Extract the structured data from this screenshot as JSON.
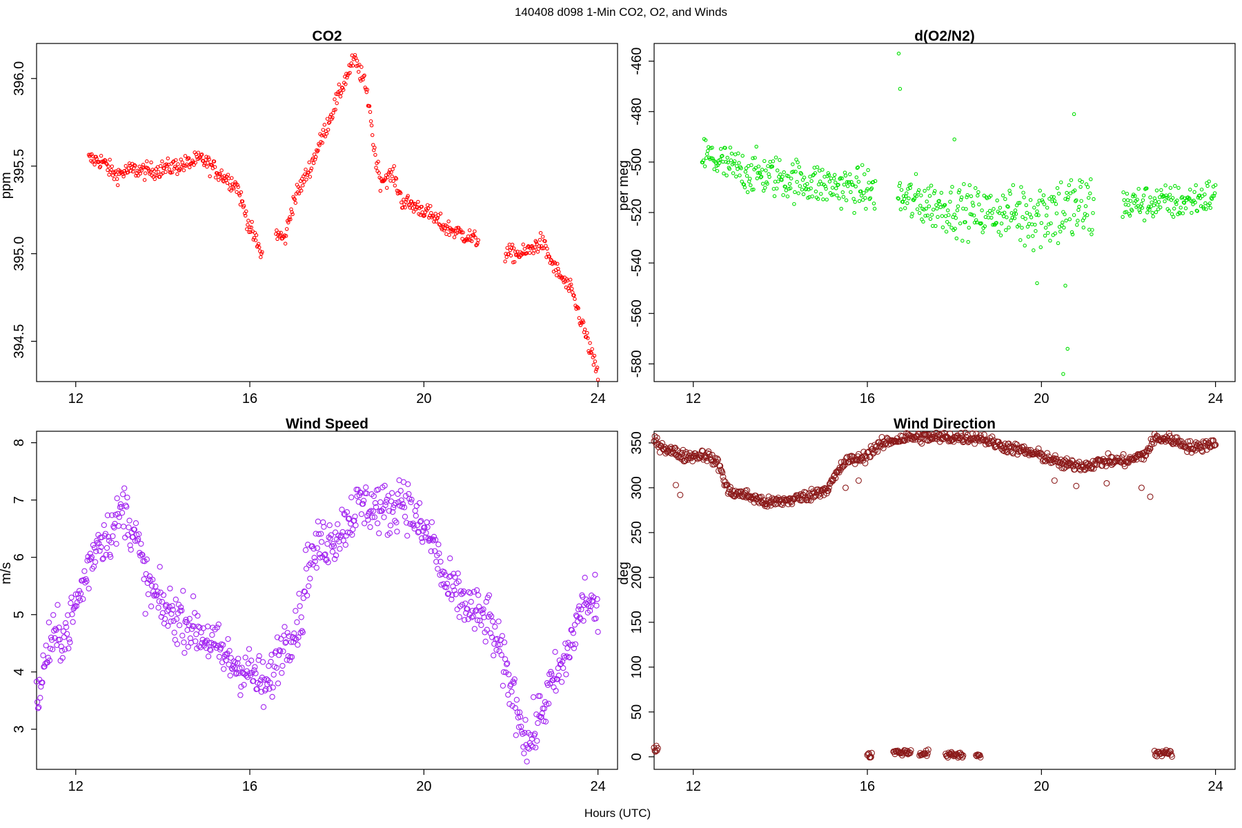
{
  "figure_title": "140408   d098   1-Min CO2, O2, and Winds",
  "x_axis_label": "Hours (UTC)",
  "chart_data": [
    {
      "id": "co2",
      "type": "scatter",
      "title": "CO2",
      "xlabel": "",
      "ylabel": "ppm",
      "color": "#ff0000",
      "xlim": [
        11.1,
        24.45
      ],
      "ylim": [
        394.27,
        396.2
      ],
      "xticks": [
        12,
        16,
        20,
        24
      ],
      "yticks": [
        394.5,
        395.0,
        395.5,
        396.0
      ],
      "ytick_labels": [
        "394.5",
        "395.0",
        "395.5",
        "396.0"
      ],
      "gaps": [
        [
          16.3,
          16.6
        ],
        [
          21.25,
          21.85
        ]
      ],
      "knots": [
        [
          12.3,
          395.54
        ],
        [
          12.6,
          395.53
        ],
        [
          12.9,
          395.45
        ],
        [
          13.3,
          395.48
        ],
        [
          13.7,
          395.47
        ],
        [
          14.1,
          395.49
        ],
        [
          14.5,
          395.51
        ],
        [
          14.9,
          395.54
        ],
        [
          15.3,
          395.46
        ],
        [
          15.7,
          395.39
        ],
        [
          16.0,
          395.15
        ],
        [
          16.3,
          394.98
        ],
        [
          16.6,
          395.12
        ],
        [
          16.8,
          395.08
        ],
        [
          17.0,
          395.3
        ],
        [
          17.4,
          395.5
        ],
        [
          17.8,
          395.75
        ],
        [
          18.2,
          396.0
        ],
        [
          18.4,
          396.11
        ],
        [
          18.6,
          396.0
        ],
        [
          18.75,
          395.85
        ],
        [
          18.85,
          395.6
        ],
        [
          19.0,
          395.42
        ],
        [
          19.3,
          395.45
        ],
        [
          19.5,
          395.3
        ],
        [
          20.0,
          395.25
        ],
        [
          20.5,
          395.15
        ],
        [
          21.0,
          395.1
        ],
        [
          21.25,
          395.07
        ],
        [
          21.85,
          395.0
        ],
        [
          22.3,
          395.0
        ],
        [
          22.7,
          395.07
        ],
        [
          23.0,
          394.92
        ],
        [
          23.4,
          394.78
        ],
        [
          23.7,
          394.55
        ],
        [
          24.0,
          394.3
        ]
      ],
      "noise": 0.035,
      "marker_radius": 2.2
    },
    {
      "id": "o2",
      "type": "scatter",
      "title": "d(O2/N2)",
      "xlabel": "",
      "ylabel": "per meg",
      "color": "#00e000",
      "xlim": [
        11.1,
        24.45
      ],
      "ylim": [
        -587,
        -453
      ],
      "xticks": [
        12,
        16,
        20,
        24
      ],
      "yticks": [
        -460,
        -480,
        -500,
        -520,
        -540,
        -560,
        -580
      ],
      "ytick_labels": [
        "-460",
        "-480",
        "-500",
        "-520",
        "-540",
        "-560",
        "-580"
      ],
      "gaps": [
        [
          16.2,
          16.7
        ],
        [
          21.2,
          21.85
        ]
      ],
      "knots": [
        [
          12.2,
          -497
        ],
        [
          13.0,
          -503
        ],
        [
          14.0,
          -506
        ],
        [
          15.0,
          -509
        ],
        [
          16.0,
          -511
        ],
        [
          16.7,
          -514
        ],
        [
          17.5,
          -517
        ],
        [
          18.5,
          -520
        ],
        [
          19.5,
          -520
        ],
        [
          20.5,
          -519
        ],
        [
          21.2,
          -518
        ],
        [
          21.85,
          -517
        ],
        [
          22.5,
          -516
        ],
        [
          23.2,
          -516
        ],
        [
          24.0,
          -513
        ]
      ],
      "noise_segments": [
        {
          "until": 16.3,
          "noise": 6
        },
        {
          "until": 19.5,
          "noise": 7
        },
        {
          "until": 21.3,
          "noise": 11
        },
        {
          "until": 24.5,
          "noise": 5
        }
      ],
      "outliers": [
        [
          16.72,
          -457
        ],
        [
          16.75,
          -471
        ],
        [
          18.0,
          -491
        ],
        [
          20.75,
          -481
        ],
        [
          20.5,
          -584
        ],
        [
          20.6,
          -574
        ],
        [
          19.9,
          -548
        ],
        [
          20.55,
          -549
        ]
      ],
      "marker_radius": 2.2
    },
    {
      "id": "wind-speed",
      "type": "scatter",
      "title": "Wind Speed",
      "xlabel": "",
      "ylabel": "m/s",
      "color": "#a020f0",
      "xlim": [
        11.1,
        24.45
      ],
      "ylim": [
        2.3,
        8.2
      ],
      "xticks": [
        12,
        16,
        20,
        24
      ],
      "yticks": [
        3,
        4,
        5,
        6,
        7,
        8
      ],
      "ytick_labels": [
        "3",
        "4",
        "5",
        "6",
        "7",
        "8"
      ],
      "gaps": [],
      "knots": [
        [
          11.1,
          3.5
        ],
        [
          11.4,
          4.5
        ],
        [
          11.8,
          4.7
        ],
        [
          12.2,
          5.6
        ],
        [
          12.5,
          6.3
        ],
        [
          12.9,
          6.5
        ],
        [
          13.1,
          6.9
        ],
        [
          13.4,
          6.3
        ],
        [
          13.6,
          5.6
        ],
        [
          14.0,
          5.1
        ],
        [
          14.5,
          4.9
        ],
        [
          15.0,
          4.6
        ],
        [
          15.5,
          4.2
        ],
        [
          16.0,
          4.0
        ],
        [
          16.4,
          3.7
        ],
        [
          16.7,
          4.4
        ],
        [
          17.2,
          5.0
        ],
        [
          17.3,
          5.8
        ],
        [
          17.6,
          6.2
        ],
        [
          18.0,
          6.4
        ],
        [
          18.5,
          6.9
        ],
        [
          18.8,
          6.9
        ],
        [
          19.2,
          6.8
        ],
        [
          19.5,
          7.1
        ],
        [
          19.9,
          6.5
        ],
        [
          20.2,
          6.3
        ],
        [
          20.5,
          5.5
        ],
        [
          20.8,
          5.3
        ],
        [
          21.2,
          5.0
        ],
        [
          21.5,
          4.9
        ],
        [
          21.8,
          4.2
        ],
        [
          22.1,
          3.5
        ],
        [
          22.4,
          2.7
        ],
        [
          22.6,
          3.1
        ],
        [
          22.9,
          3.7
        ],
        [
          23.2,
          4.1
        ],
        [
          23.5,
          4.8
        ],
        [
          23.7,
          5.3
        ],
        [
          24.0,
          5.0
        ]
      ],
      "noise": 0.32,
      "marker_radius": 3.6
    },
    {
      "id": "wind-direction",
      "type": "scatter",
      "title": "Wind Direction",
      "xlabel": "",
      "ylabel": "deg",
      "color": "#8b1a1a",
      "xlim": [
        11.1,
        24.45
      ],
      "ylim": [
        -14,
        363
      ],
      "xticks": [
        12,
        16,
        20,
        24
      ],
      "yticks": [
        0,
        50,
        100,
        150,
        200,
        250,
        300,
        350
      ],
      "ytick_labels": [
        "0",
        "50",
        "100",
        "150",
        "200",
        "250",
        "300",
        "350"
      ],
      "gaps": [],
      "knots": [
        [
          11.1,
          352
        ],
        [
          11.4,
          343
        ],
        [
          11.8,
          335
        ],
        [
          12.3,
          337
        ],
        [
          12.6,
          325
        ],
        [
          12.8,
          296
        ],
        [
          13.2,
          292
        ],
        [
          13.7,
          283
        ],
        [
          14.2,
          286
        ],
        [
          14.7,
          292
        ],
        [
          15.1,
          300
        ],
        [
          15.5,
          330
        ],
        [
          15.9,
          333
        ],
        [
          16.1,
          342
        ],
        [
          16.5,
          352
        ],
        [
          16.9,
          356
        ],
        [
          17.5,
          356
        ],
        [
          18.0,
          356
        ],
        [
          18.6,
          356
        ],
        [
          19.0,
          348
        ],
        [
          19.5,
          342
        ],
        [
          20.0,
          336
        ],
        [
          20.5,
          326
        ],
        [
          21.0,
          325
        ],
        [
          21.5,
          330
        ],
        [
          22.0,
          330
        ],
        [
          22.4,
          338
        ],
        [
          22.6,
          355
        ],
        [
          23.0,
          354
        ],
        [
          23.5,
          344
        ],
        [
          24.0,
          351
        ]
      ],
      "noise": 4.5,
      "low_clusters": [
        {
          "from": 11.1,
          "to": 11.2,
          "value": 9
        },
        {
          "from": 16.0,
          "to": 16.1,
          "value": 2
        },
        {
          "from": 16.6,
          "to": 17.0,
          "value": 5
        },
        {
          "from": 17.2,
          "to": 17.4,
          "value": 4
        },
        {
          "from": 17.8,
          "to": 18.2,
          "value": 2
        },
        {
          "from": 18.5,
          "to": 18.6,
          "value": 2
        },
        {
          "from": 22.6,
          "to": 23.0,
          "value": 4
        }
      ],
      "extra_points": [
        [
          11.6,
          303
        ],
        [
          11.7,
          292
        ],
        [
          15.5,
          300
        ],
        [
          15.8,
          308
        ],
        [
          20.3,
          308
        ],
        [
          20.8,
          302
        ],
        [
          21.5,
          305
        ],
        [
          22.3,
          300
        ],
        [
          22.5,
          290
        ]
      ],
      "marker_radius": 4.0
    }
  ]
}
